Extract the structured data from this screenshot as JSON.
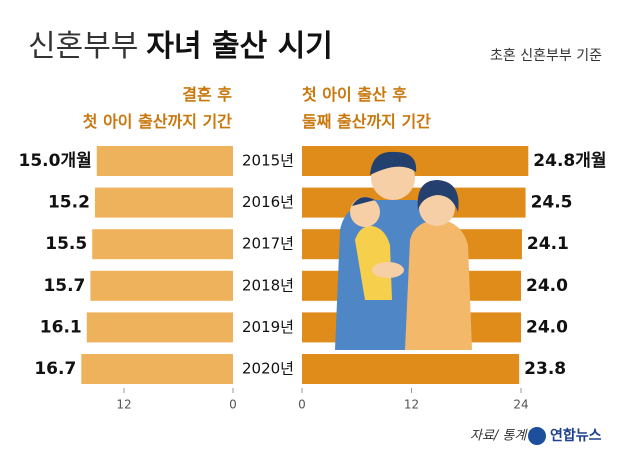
{
  "chart_data": {
    "type": "butterfly",
    "title": [
      "신혼부부",
      "자녀 출산 시기"
    ],
    "subtitle": "초혼 신혼부부 기준",
    "categories": [
      "2015년",
      "2016년",
      "2017년",
      "2018년",
      "2019년",
      "2020년"
    ],
    "series": [
      {
        "name": "결혼 후\n첫 아이 출산까지 기간",
        "color": "#efb25c",
        "side": "left",
        "values": [
          15.0,
          15.2,
          15.5,
          15.7,
          16.1,
          16.7
        ],
        "value_labels": [
          "15.0개월",
          "15.2",
          "15.5",
          "15.7",
          "16.1",
          "16.7"
        ],
        "xlim": [
          0,
          24
        ],
        "xticks": [
          0,
          12
        ]
      },
      {
        "name": "첫 아이 출산 후\n둘째 출산까지 기간",
        "color": "#df8c1b",
        "side": "right",
        "values": [
          24.8,
          24.5,
          24.1,
          24.0,
          24.0,
          23.8
        ],
        "value_labels": [
          "24.8개월",
          "24.5",
          "24.1",
          "24.0",
          "24.0",
          "23.8"
        ],
        "xlim": [
          0,
          24
        ],
        "xticks": [
          0,
          12,
          24
        ]
      }
    ],
    "source": "자료/ 통계청",
    "logo": "연합뉴스"
  }
}
